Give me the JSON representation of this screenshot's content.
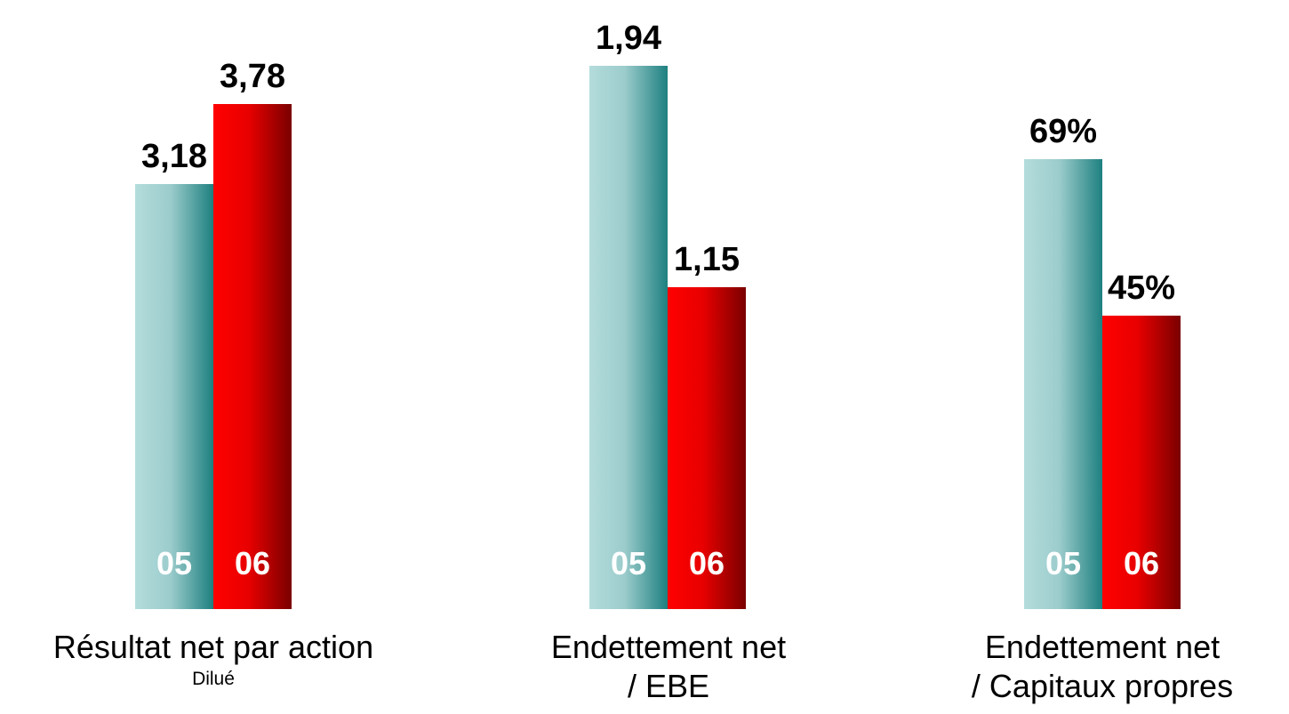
{
  "colors": {
    "series_05": [
      "#b4dcdc",
      "#9ccccc",
      "#1e8080"
    ],
    "series_06": [
      "#ff0000",
      "#e80000",
      "#7a0000"
    ]
  },
  "chart_data": [
    {
      "type": "bar",
      "categories": [
        "05",
        "06"
      ],
      "values": [
        3.18,
        3.78
      ],
      "value_labels": [
        "3,18",
        "3,78"
      ],
      "label_line1": "Résultat net par action",
      "label_line2": "Dilué",
      "ylim": [
        0,
        4.125
      ]
    },
    {
      "type": "bar",
      "categories": [
        "05",
        "06"
      ],
      "values": [
        1.94,
        1.15
      ],
      "value_labels": [
        "1,94",
        "1,15"
      ],
      "label_line1": "Endettement net",
      "label_line2": "/ EBE",
      "ylim": [
        0,
        1.97
      ]
    },
    {
      "type": "bar",
      "categories": [
        "05",
        "06"
      ],
      "values": [
        69,
        45
      ],
      "value_labels": [
        "69%",
        "45%"
      ],
      "label_line1": "Endettement net",
      "label_line2": "/ Capitaux propres",
      "ylim": [
        0,
        84.5
      ]
    }
  ]
}
